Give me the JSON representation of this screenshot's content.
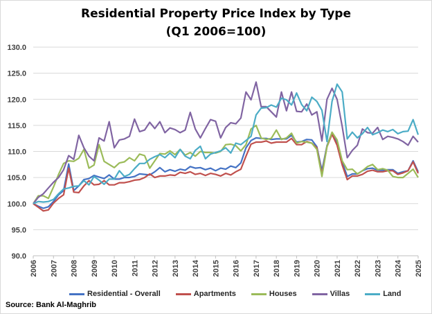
{
  "chart_data": {
    "type": "line",
    "title": "Residential Property Price Index by Type",
    "subtitle": "(Q1 2006=100)",
    "frequency": "quarterly",
    "x_tick_labels": [
      "2006",
      "2007",
      "2008",
      "2009",
      "2010",
      "2011",
      "2012",
      "2013",
      "2014",
      "2015",
      "2016",
      "2017",
      "2018",
      "2019",
      "2020",
      "2021",
      "2022",
      "2023",
      "2024",
      "2025"
    ],
    "ylim": [
      90,
      130
    ],
    "y_ticks": [
      "90.0",
      "95.0",
      "100.0",
      "105.0",
      "110.0",
      "115.0",
      "120.0",
      "125.0",
      "130.0"
    ],
    "grid": "horizontal",
    "legend": "bottom",
    "series": [
      {
        "name": "Residential - Overall",
        "color": "#4472C4",
        "values": [
          100,
          99.5,
          99.1,
          99.4,
          100.4,
          101.7,
          102.5,
          107.6,
          102.5,
          103.4,
          104.6,
          104.8,
          105.4,
          105.1,
          104.8,
          105.5,
          104.7,
          104.7,
          105,
          105,
          105.2,
          105.7,
          105.6,
          105.5,
          106.1,
          106.9,
          106.1,
          106.5,
          106.2,
          106.6,
          106.4,
          107.1,
          106.8,
          106.9,
          106.5,
          106.8,
          106.3,
          106.8,
          106.6,
          107.2,
          106.9,
          107.8,
          110.7,
          112.1,
          112.6,
          112.5,
          112.5,
          112.3,
          112.4,
          112.4,
          112.4,
          113.1,
          111.8,
          111.9,
          112.3,
          112.2,
          110.9,
          106.3,
          111.1,
          113.6,
          111.5,
          108,
          105.2,
          105.7,
          105.7,
          106.3,
          106.7,
          106.8,
          106.4,
          106.4,
          106.5,
          106.5,
          105.8,
          106.1,
          106.3,
          108.2,
          106.1
        ]
      },
      {
        "name": "Apartments",
        "color": "#C0504D",
        "values": [
          100,
          99.3,
          98.6,
          98.8,
          100.1,
          101,
          101.7,
          106.8,
          102.2,
          102.1,
          103.4,
          104.4,
          103.6,
          103.7,
          104.4,
          103.6,
          103.6,
          104,
          104,
          104.2,
          104.5,
          104.6,
          105,
          105.7,
          105,
          105.3,
          105.3,
          105.5,
          105.4,
          106,
          105.8,
          106.1,
          105.6,
          105.8,
          105.4,
          105.8,
          105.6,
          105.3,
          105.8,
          105.5,
          106.1,
          106.6,
          109.1,
          111.4,
          111.8,
          111.8,
          112,
          111.6,
          111.8,
          111.8,
          111.8,
          112.5,
          111.3,
          111.3,
          111.9,
          111.6,
          110.7,
          105.6,
          110.9,
          113.3,
          111.2,
          107.4,
          104.6,
          105.3,
          105.3,
          105.6,
          106.2,
          106.4,
          106.1,
          106.1,
          106.3,
          106.3,
          105.6,
          105.9,
          106.3,
          108,
          105.8
        ]
      },
      {
        "name": "Houses",
        "color": "#9BBB59",
        "values": [
          100,
          101.5,
          101.5,
          101,
          103.2,
          105.6,
          107.7,
          108.2,
          108.1,
          108.7,
          110.4,
          106.8,
          107.4,
          111.3,
          108.1,
          107.5,
          106.9,
          107.8,
          108,
          108.8,
          108.2,
          109.5,
          109.2,
          106.8,
          108.2,
          109.6,
          109.5,
          110.1,
          109.4,
          110.4,
          109.3,
          109.8,
          109.1,
          110,
          109.8,
          109.8,
          109.7,
          110,
          111.3,
          111.4,
          111.1,
          110.1,
          111.3,
          114.3,
          115,
          112.6,
          112.3,
          112.5,
          114.1,
          112.3,
          112.6,
          113.5,
          111.6,
          111.9,
          111.8,
          111.6,
          110.4,
          105.2,
          110.9,
          113.7,
          112.2,
          108.2,
          106.5,
          106.6,
          105.7,
          106.3,
          107.1,
          107.5,
          106.5,
          106.7,
          106.4,
          105.2,
          105,
          105,
          105.8,
          106.6,
          105
        ]
      },
      {
        "name": "Villas",
        "color": "#8064A2",
        "values": [
          100,
          101.2,
          101.9,
          103,
          104.1,
          105,
          106.5,
          109.2,
          108.5,
          113.1,
          110.7,
          109.1,
          108.2,
          112.6,
          112,
          115.7,
          110.7,
          112.2,
          112.4,
          112.9,
          116.2,
          113.8,
          114.1,
          115.6,
          114.4,
          115.7,
          113.6,
          114.5,
          114.2,
          113.6,
          114.1,
          117.5,
          114.3,
          112.6,
          114.4,
          116.1,
          115.8,
          112.6,
          114.6,
          115.5,
          115.3,
          116.4,
          121.4,
          119.9,
          123.3,
          118.6,
          118.6,
          117.6,
          116.6,
          121.4,
          117.8,
          121.4,
          117.7,
          117.6,
          119.1,
          117,
          117.6,
          112,
          120,
          122.1,
          120,
          114.8,
          108.8,
          110.2,
          111.2,
          114.3,
          113.6,
          113.5,
          114.6,
          112.3,
          112.9,
          112.7,
          112.4,
          111.9,
          111.2,
          112.9,
          111.8
        ]
      },
      {
        "name": "Land",
        "color": "#4BACC6",
        "values": [
          100,
          100.4,
          100.3,
          100.4,
          100.8,
          101.9,
          102.8,
          103,
          103.3,
          103.4,
          104.4,
          103.6,
          105.2,
          104.5,
          103.7,
          104.7,
          104.7,
          106.3,
          105.2,
          105.6,
          106.7,
          107.7,
          107.7,
          108.5,
          109,
          109.4,
          108.8,
          109.7,
          108.8,
          110.4,
          109.1,
          108.6,
          110.2,
          111,
          108.6,
          109.5,
          109.8,
          110.1,
          110.7,
          109.7,
          111.6,
          111.3,
          112.1,
          112.9,
          117,
          118.3,
          118.4,
          118.9,
          118.5,
          120.2,
          119.9,
          118.9,
          121.2,
          119,
          117.8,
          120.4,
          119.6,
          117.9,
          111.9,
          119.6,
          122.9,
          121.4,
          112.4,
          113.7,
          112.6,
          113.4,
          114.6,
          113.2,
          113.6,
          114.1,
          113.8,
          114.2,
          113.4,
          113.8,
          113.9,
          116.1,
          113.2
        ]
      }
    ]
  },
  "source": "Source:  Bank Al-Maghrib"
}
